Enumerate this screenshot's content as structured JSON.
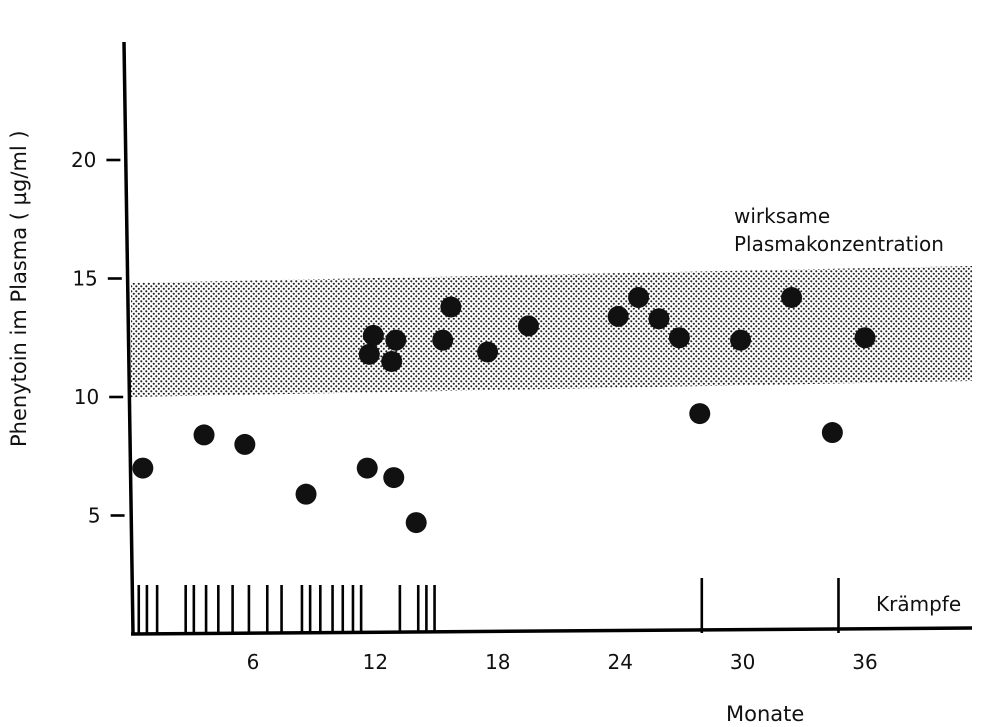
{
  "chart_data": {
    "type": "scatter",
    "title": "",
    "xlabel": "Monate",
    "ylabel": "Phenytoin im Plasma ( µg/ml )",
    "xlim": [
      -6,
      42
    ],
    "ylim": [
      0,
      25
    ],
    "x_ticks": [
      6,
      12,
      18,
      24,
      30,
      36
    ],
    "y_ticks": [
      5,
      10,
      15,
      20
    ],
    "grid": false,
    "band": {
      "label_line1": "wirksame",
      "label_line2": "Plasmakonzentration",
      "y_from": 10,
      "y_to": 15
    },
    "series": [
      {
        "points": [
          {
            "x": 0.6,
            "y": 7.0
          },
          {
            "x": 3.6,
            "y": 8.4
          },
          {
            "x": 5.6,
            "y": 8.0
          },
          {
            "x": 8.6,
            "y": 5.9
          },
          {
            "x": 11.6,
            "y": 7.0
          },
          {
            "x": 11.7,
            "y": 11.8
          },
          {
            "x": 11.9,
            "y": 12.6
          },
          {
            "x": 12.8,
            "y": 11.5
          },
          {
            "x": 12.9,
            "y": 6.6
          },
          {
            "x": 13.0,
            "y": 12.4
          },
          {
            "x": 14.0,
            "y": 4.7
          },
          {
            "x": 15.3,
            "y": 12.4
          },
          {
            "x": 15.7,
            "y": 13.8
          },
          {
            "x": 17.5,
            "y": 11.9
          },
          {
            "x": 19.5,
            "y": 13.0
          },
          {
            "x": 23.9,
            "y": 13.4
          },
          {
            "x": 24.9,
            "y": 14.2
          },
          {
            "x": 25.9,
            "y": 13.3
          },
          {
            "x": 26.9,
            "y": 12.5
          },
          {
            "x": 27.9,
            "y": 9.3
          },
          {
            "x": 29.9,
            "y": 12.4
          },
          {
            "x": 32.4,
            "y": 14.2
          },
          {
            "x": 34.4,
            "y": 8.5
          },
          {
            "x": 36.0,
            "y": 12.5
          }
        ]
      }
    ],
    "seizures": {
      "label": "Krämpfe",
      "months": [
        0.4,
        0.8,
        1.3,
        2.7,
        3.1,
        3.7,
        4.3,
        5.0,
        5.8,
        6.7,
        7.4,
        8.4,
        8.8,
        9.3,
        9.9,
        10.4,
        10.9,
        11.3,
        13.2,
        14.1,
        14.5,
        14.9,
        28.0,
        34.7
      ]
    }
  }
}
